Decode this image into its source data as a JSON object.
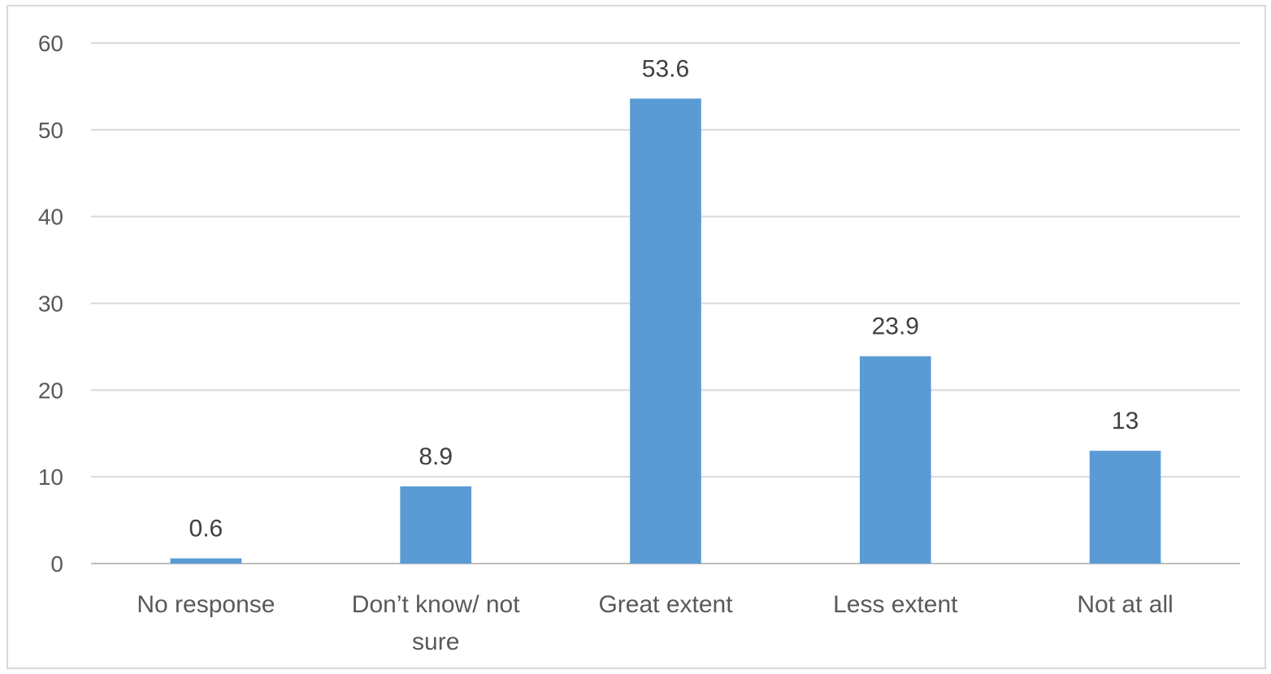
{
  "chart_data": {
    "type": "bar",
    "categories": [
      "No response",
      "Don’t know/ not sure",
      "Great extent",
      "Less extent",
      "Not at all"
    ],
    "category_lines": [
      [
        "No response"
      ],
      [
        "Don’t know/ not",
        "sure"
      ],
      [
        "Great extent"
      ],
      [
        "Less extent"
      ],
      [
        "Not at all"
      ]
    ],
    "values": [
      0.6,
      8.9,
      53.6,
      23.9,
      13
    ],
    "value_labels": [
      "0.6",
      "8.9",
      "53.6",
      "23.9",
      "13"
    ],
    "ylim": [
      0,
      60
    ],
    "yticks": [
      0,
      10,
      20,
      30,
      40,
      50,
      60
    ],
    "title": "",
    "xlabel": "",
    "ylabel": "",
    "grid": true,
    "bar_color": "#5b9bd5",
    "grid_color": "#d9d9d9",
    "text_color": "#595959"
  }
}
